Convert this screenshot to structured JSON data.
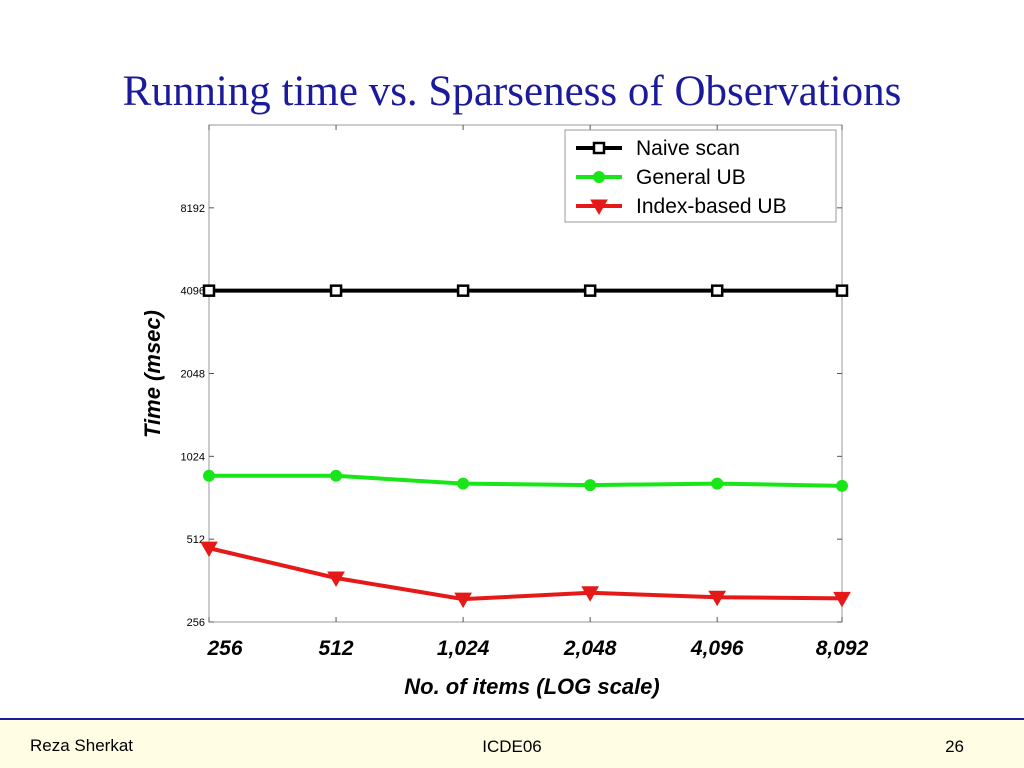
{
  "slide": {
    "title": "Running time vs. Sparseness of Observations"
  },
  "footer": {
    "author": "Reza Sherkat",
    "venue": "ICDE06",
    "page_number": "26"
  },
  "chart_data": {
    "type": "line",
    "xlabel": "No. of items (LOG scale)",
    "ylabel": "Time (msec)",
    "x_scale": "log",
    "y_scale": "log2",
    "categories": [
      "256",
      "512",
      "1,024",
      "2,048",
      "4,096",
      "8,092"
    ],
    "x": [
      256,
      512,
      1024,
      2048,
      4096,
      8092
    ],
    "yticks": [
      "256",
      "512",
      "1024",
      "2048",
      "4096",
      "8192"
    ],
    "ytick_values": [
      256,
      512,
      1024,
      2048,
      4096,
      8192
    ],
    "ylim": [
      256,
      16384
    ],
    "grid": false,
    "legend_position": "top-right",
    "series": [
      {
        "name": "Naive scan",
        "color": "#000000",
        "marker": "square",
        "values": [
          4096,
          4096,
          4096,
          4096,
          4096,
          4096
        ]
      },
      {
        "name": "General UB",
        "color": "#19e619",
        "marker": "circle",
        "values": [
          870,
          870,
          815,
          805,
          815,
          800
        ]
      },
      {
        "name": "Index-based UB",
        "color": "#e61919",
        "marker": "triangle-down",
        "values": [
          475,
          370,
          310,
          327,
          315,
          312
        ]
      }
    ]
  }
}
